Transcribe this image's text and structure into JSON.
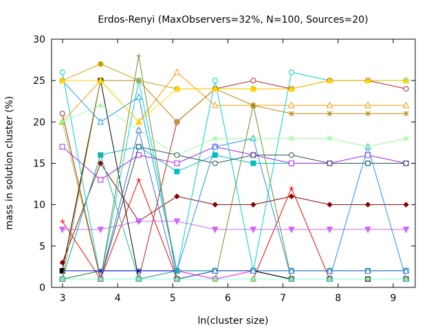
{
  "chart_data": {
    "type": "line",
    "title": "Erdos-Renyi (MaxObservers=32%, N=100, Sources=20)",
    "xlabel": "ln(cluster size)",
    "ylabel": "mass in solution cluster (%)",
    "xlim": [
      2.8,
      9.4
    ],
    "ylim": [
      0,
      30
    ],
    "xticks": [
      3,
      4,
      5,
      6,
      7,
      8,
      9
    ],
    "yticks": [
      0,
      5,
      10,
      15,
      20,
      25,
      30
    ],
    "grid": false,
    "legend": "none",
    "x": [
      2.996,
      3.689,
      4.382,
      5.075,
      5.768,
      6.461,
      7.154,
      7.847,
      8.54,
      9.233
    ],
    "series": [
      {
        "color": "#ff0000",
        "marker": "plus",
        "values": [
          8,
          1,
          13,
          1,
          1,
          1,
          12,
          1,
          1,
          1
        ]
      },
      {
        "color": "#008000",
        "marker": "x",
        "values": [
          1,
          2,
          2,
          2,
          2,
          2,
          2,
          2,
          2,
          2
        ]
      },
      {
        "color": "#0000ff",
        "marker": "star",
        "values": [
          2,
          2,
          2,
          2,
          2,
          2,
          1,
          1,
          1,
          1
        ]
      },
      {
        "color": "#ff00ff",
        "marker": "box",
        "values": [
          1,
          1,
          1,
          2,
          1,
          2,
          1,
          1,
          1,
          1
        ]
      },
      {
        "color": "#00bfbf",
        "marker": "fbox",
        "values": [
          1,
          16,
          17,
          14,
          16,
          15,
          15,
          15,
          15,
          15
        ]
      },
      {
        "color": "#006400",
        "marker": "circle",
        "values": [
          1,
          1,
          1,
          1,
          2,
          2,
          1,
          1,
          1,
          1
        ]
      },
      {
        "color": "#c8a000",
        "marker": "fcircle",
        "values": [
          25,
          27,
          25,
          24,
          24,
          24,
          24,
          25,
          25,
          25
        ]
      },
      {
        "color": "#ff9900",
        "marker": "triangle",
        "values": [
          20,
          25,
          20,
          26,
          22,
          22,
          22,
          22,
          22,
          22
        ]
      },
      {
        "color": "#9acd32",
        "marker": "ftriangle",
        "values": [
          20,
          1,
          1,
          1,
          1,
          1,
          1,
          1,
          1,
          1
        ]
      },
      {
        "color": "#8b0000",
        "marker": "fdiamond",
        "values": [
          3,
          15,
          8,
          11,
          10,
          10,
          11,
          10,
          10,
          10
        ]
      },
      {
        "color": "#a020f0",
        "marker": "box",
        "values": [
          17,
          13,
          16,
          15,
          17,
          16,
          15,
          15,
          16,
          15
        ]
      },
      {
        "color": "#cc66ff",
        "marker": "fdtriangle",
        "values": [
          7,
          7,
          8,
          8,
          7,
          7,
          7,
          7,
          7,
          7
        ]
      },
      {
        "color": "#000000",
        "marker": "fbox",
        "values": [
          2,
          25,
          1,
          1,
          2,
          2,
          1,
          1,
          1,
          1
        ]
      },
      {
        "color": "#00ced1",
        "marker": "circle",
        "values": [
          26,
          1,
          25,
          2,
          25,
          2,
          26,
          25,
          25,
          25
        ]
      },
      {
        "color": "#b22222",
        "marker": "circle",
        "values": [
          21,
          1,
          1,
          20,
          24,
          25,
          24,
          25,
          25,
          24
        ]
      },
      {
        "color": "#1e90ff",
        "marker": "triangle",
        "values": [
          25,
          20,
          23,
          2,
          17,
          18,
          1,
          1,
          17,
          1
        ]
      },
      {
        "color": "#b8860b",
        "marker": "star",
        "values": [
          1,
          25,
          25,
          20,
          24,
          22,
          21,
          21,
          21,
          21
        ]
      },
      {
        "color": "#6b8e23",
        "marker": "plus",
        "values": [
          1,
          1,
          28,
          1,
          1,
          22,
          1,
          1,
          1,
          1
        ]
      },
      {
        "color": "#98fb98",
        "marker": "star",
        "values": [
          20,
          22,
          19,
          16,
          18,
          18,
          18,
          18,
          17,
          18
        ]
      },
      {
        "color": "#2f4f4f",
        "marker": "circle",
        "values": [
          1,
          1,
          17,
          16,
          15,
          16,
          16,
          15,
          15,
          15
        ]
      },
      {
        "color": "#20b2aa",
        "marker": "fbox",
        "values": [
          1,
          16,
          1,
          2,
          2,
          2,
          2,
          2,
          2,
          2
        ]
      },
      {
        "color": "#4169e1",
        "marker": "triangle",
        "values": [
          1,
          1,
          19,
          1,
          2,
          2,
          2,
          2,
          2,
          2
        ]
      },
      {
        "color": "#cd853f",
        "marker": "fdiamond",
        "values": [
          1,
          1,
          1,
          1,
          1,
          1,
          1,
          1,
          1,
          1
        ]
      },
      {
        "color": "#ffd700",
        "marker": "ftriangle",
        "values": [
          25,
          25,
          20,
          24,
          24,
          24,
          24,
          25,
          25,
          25
        ]
      },
      {
        "color": "#7fffd4",
        "marker": "star",
        "values": [
          1,
          1,
          1,
          1,
          1,
          1,
          1,
          1,
          1,
          1
        ]
      }
    ]
  }
}
